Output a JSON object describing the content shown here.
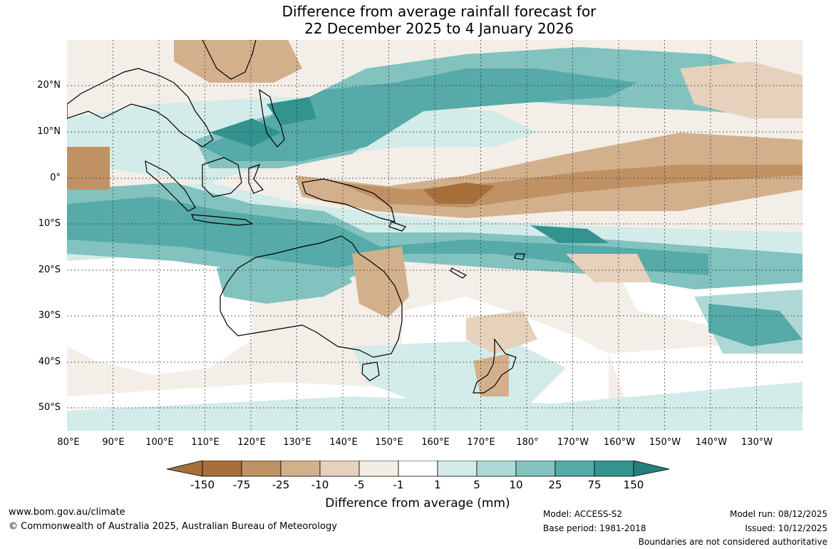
{
  "title": {
    "line1": "Difference from average rainfall forecast for",
    "line2": "22 December 2025 to 4 January 2026"
  },
  "map": {
    "lat_labels": [
      "20°N",
      "10°N",
      "0°",
      "10°S",
      "20°S",
      "30°S",
      "40°S",
      "50°S"
    ],
    "lon_labels": [
      "80°E",
      "90°E",
      "100°E",
      "110°E",
      "120°E",
      "130°E",
      "140°E",
      "150°E",
      "160°E",
      "170°E",
      "180°",
      "170°W",
      "160°W",
      "150°W",
      "140°W",
      "130°W"
    ],
    "gridlines": true
  },
  "colorbar": {
    "ticks": [
      "-150",
      "-75",
      "-25",
      "-10",
      "-5",
      "-1",
      "1",
      "5",
      "10",
      "25",
      "75",
      "150"
    ],
    "colors": [
      "#a66f3c",
      "#bf9163",
      "#d3b08c",
      "#e6d1bc",
      "#f4ede5",
      "#ffffff",
      "#d3ebe9",
      "#aed8d6",
      "#82c2bf",
      "#56aaa8",
      "#33948f",
      "#257f7a"
    ],
    "label": "Difference from average (mm)"
  },
  "footer": {
    "website": "www.bom.gov.au/climate",
    "copyright": "© Commonwealth of Australia 2025, Australian Bureau of Meteorology",
    "model": "Model: ACCESS-S2",
    "base_period": "Base period: 1981-2018",
    "model_run": "Model run: 08/12/2025",
    "issued": "Issued: 10/12/2025",
    "disclaimer": "Boundaries are not considered authoritative"
  }
}
